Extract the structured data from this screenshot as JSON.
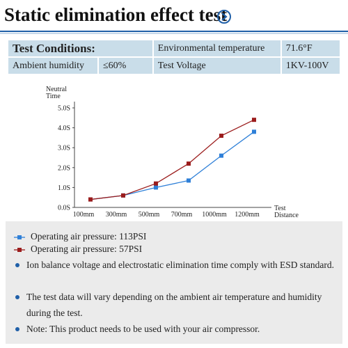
{
  "header": {
    "title": "Static elimination effect test"
  },
  "table": {
    "rows": [
      [
        "Test Conditions:",
        "Environmental temperature",
        "71.6°F"
      ],
      [
        "Ambient humidity",
        "≤60%",
        "Test Voltage",
        "1KV-100V"
      ]
    ]
  },
  "chart_data": {
    "type": "line",
    "y_label": "Neutral Time",
    "x_label": "Test Distance",
    "categories": [
      "100mm",
      "300mm",
      "500mm",
      "700mm",
      "1000mm",
      "1200mm"
    ],
    "series": [
      {
        "name": "Operating air pressure: 113PSI",
        "color": "#2f80d8",
        "values": [
          0.4,
          0.6,
          1.0,
          1.35,
          2.6,
          3.8
        ]
      },
      {
        "name": "Operating air pressure: 57PSI",
        "color": "#9b1c1c",
        "values": [
          0.4,
          0.6,
          1.2,
          2.2,
          3.6,
          4.4
        ]
      }
    ],
    "ylim": [
      0,
      5
    ],
    "yticks": [
      {
        "value": 0,
        "label": "0.0S"
      },
      {
        "value": 1,
        "label": "1.0S"
      },
      {
        "value": 2,
        "label": "2.0S"
      },
      {
        "value": 3,
        "label": "3.0S"
      },
      {
        "value": 4,
        "label": "4.0S"
      },
      {
        "value": 5,
        "label": "5.0S"
      }
    ]
  },
  "notes": [
    "Ion balance voltage and electrostatic elimination time comply with ESD standard.",
    "The test data will vary depending on the ambient air temperature and humidity during the test.",
    "Note: This product needs to be used with your air compressor."
  ]
}
